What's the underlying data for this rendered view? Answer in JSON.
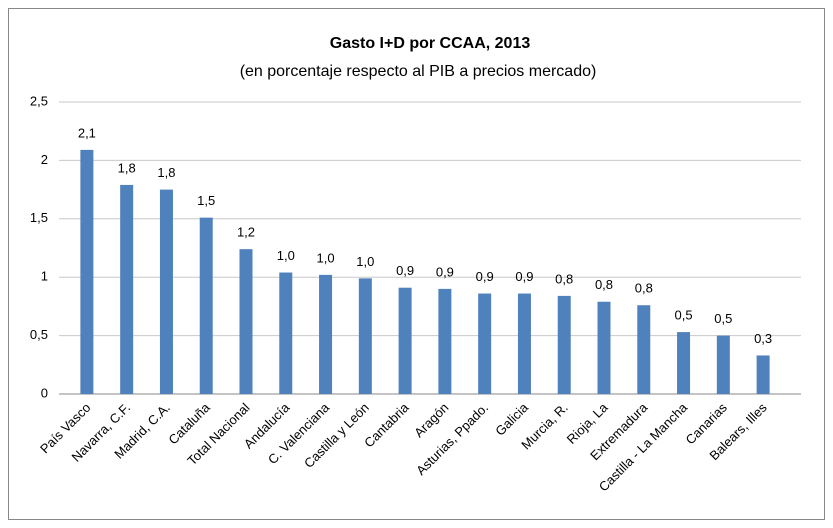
{
  "chart_data": {
    "type": "bar",
    "title": "Gasto I+D por CCAA, 2013",
    "subtitle": "(en porcentaje respecto al PIB a precios mercado)",
    "categories": [
      "País Vasco",
      "Navarra, C.F.",
      "Madrid, C.A.",
      "Cataluña",
      "Total Nacional",
      "Andalucía",
      "C. Valenciana",
      "Castilla y León",
      "Cantabria",
      "Aragón",
      "Asturias, Ppado.",
      "Galicia",
      "Murcia, R.",
      "Rioja, La",
      "Extremadura",
      "Castilla - La Mancha",
      "Canarias",
      "Balears, Illes"
    ],
    "values": [
      2.09,
      1.79,
      1.75,
      1.51,
      1.24,
      1.04,
      1.02,
      0.99,
      0.91,
      0.9,
      0.86,
      0.86,
      0.84,
      0.79,
      0.76,
      0.53,
      0.5,
      0.33
    ],
    "value_labels": [
      "2,1",
      "1,8",
      "1,8",
      "1,5",
      "1,2",
      "1,0",
      "1,0",
      "1,0",
      "0,9",
      "0,9",
      "0,9",
      "0,9",
      "0,8",
      "0,8",
      "0,8",
      "0,5",
      "0,5",
      "0,3"
    ],
    "color": "#4f81bd",
    "ylim": [
      0,
      2.5
    ],
    "yticks": [
      0,
      {
        "value": 0.5,
        "label": "0,5"
      },
      1,
      {
        "value": 1.5,
        "label": "1,5"
      },
      2,
      {
        "value": 2.5,
        "label": "2,5"
      }
    ],
    "grid": true
  }
}
